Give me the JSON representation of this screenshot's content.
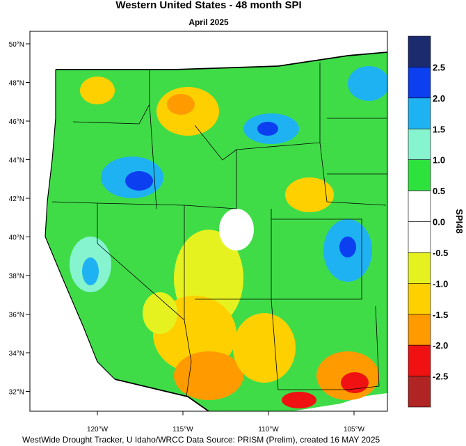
{
  "title": "Western United States - 48 month SPI",
  "subtitle": "April 2025",
  "latitude_labels": [
    "50°N",
    "48°N",
    "46°N",
    "44°N",
    "42°N",
    "40°N",
    "38°N",
    "36°N",
    "34°N",
    "32°N"
  ],
  "longitude_labels": [
    "120°W",
    "115°W",
    "110°W",
    "105°W"
  ],
  "colorbar": {
    "title": "SPI48",
    "labels": [
      "2.5",
      "2.0",
      "1.5",
      "1.0",
      "0.5",
      "0.0",
      "-0.5",
      "-1.0",
      "-1.5",
      "-2.0",
      "-2.5"
    ],
    "colors": [
      "#1c2a6e",
      "#0b3ff0",
      "#1fb2f2",
      "#86f4cf",
      "#2ee23e",
      "#ffffff",
      "#ffffff",
      "#e6f21f",
      "#ffd000",
      "#ff9a00",
      "#f01212",
      "#b02424"
    ]
  },
  "footer": "WestWide Drought Tracker, U Idaho/WRCC Data Source: PRISM (Prelim), created 16 MAY 2025"
}
